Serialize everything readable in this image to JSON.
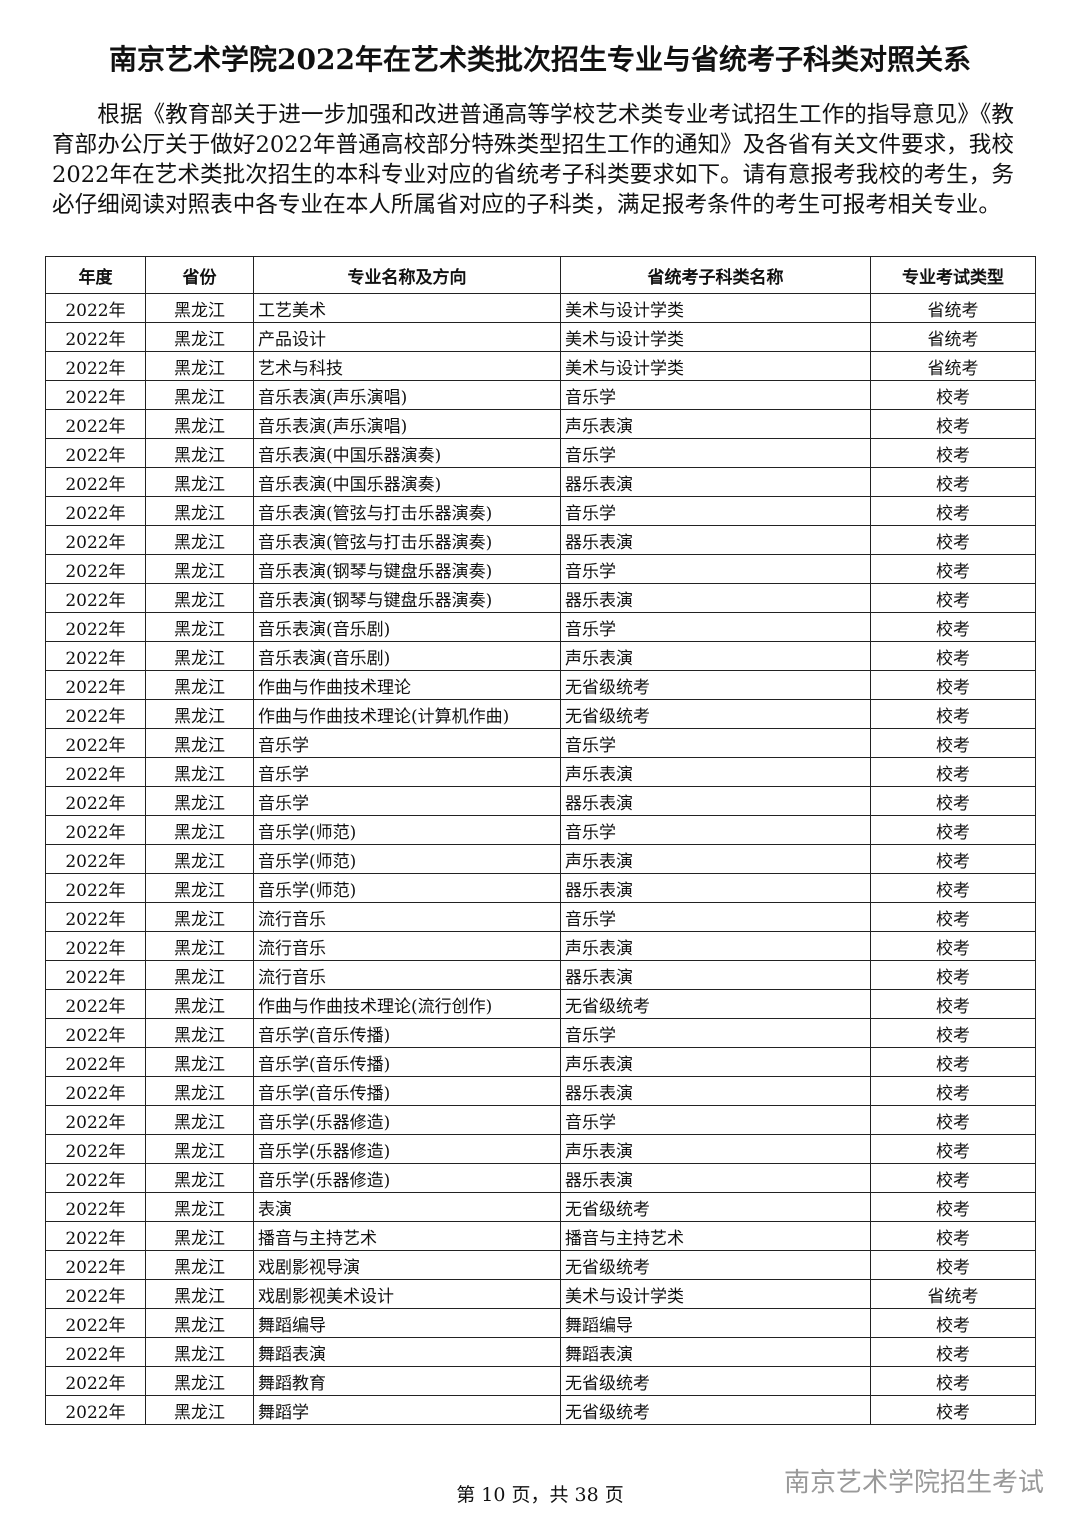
{
  "title": "南京艺术学院2022年在艺术类批次招生专业与省统考子科类对照关系",
  "intro": "根据《教育部关于进一步加强和改进普通高等学校艺术类专业考试招生工作的指导意见》《教育部办公厅关于做好2022年普通高校部分特殊类型招生工作的通知》及各省有关文件要求，我校2022年在艺术类批次招生的本科专业对应的省统考子科类要求如下。请有意报考我校的考生，务必仔细阅读对照表中各专业在本人所属省对应的子科类，满足报考条件的考生可报考相关专业。",
  "table": {
    "header": [
      "年度",
      "省份",
      "专业名称及方向",
      "省统考子科类名称",
      "专业考试类型"
    ],
    "rows": [
      [
        "2022年",
        "黑龙江",
        "工艺美术",
        "美术与设计学类",
        "省统考"
      ],
      [
        "2022年",
        "黑龙江",
        "产品设计",
        "美术与设计学类",
        "省统考"
      ],
      [
        "2022年",
        "黑龙江",
        "艺术与科技",
        "美术与设计学类",
        "省统考"
      ],
      [
        "2022年",
        "黑龙江",
        "音乐表演(声乐演唱)",
        "音乐学",
        "校考"
      ],
      [
        "2022年",
        "黑龙江",
        "音乐表演(声乐演唱)",
        "声乐表演",
        "校考"
      ],
      [
        "2022年",
        "黑龙江",
        "音乐表演(中国乐器演奏)",
        "音乐学",
        "校考"
      ],
      [
        "2022年",
        "黑龙江",
        "音乐表演(中国乐器演奏)",
        "器乐表演",
        "校考"
      ],
      [
        "2022年",
        "黑龙江",
        "音乐表演(管弦与打击乐器演奏)",
        "音乐学",
        "校考"
      ],
      [
        "2022年",
        "黑龙江",
        "音乐表演(管弦与打击乐器演奏)",
        "器乐表演",
        "校考"
      ],
      [
        "2022年",
        "黑龙江",
        "音乐表演(钢琴与键盘乐器演奏)",
        "音乐学",
        "校考"
      ],
      [
        "2022年",
        "黑龙江",
        "音乐表演(钢琴与键盘乐器演奏)",
        "器乐表演",
        "校考"
      ],
      [
        "2022年",
        "黑龙江",
        "音乐表演(音乐剧)",
        "音乐学",
        "校考"
      ],
      [
        "2022年",
        "黑龙江",
        "音乐表演(音乐剧)",
        "声乐表演",
        "校考"
      ],
      [
        "2022年",
        "黑龙江",
        "作曲与作曲技术理论",
        "无省级统考",
        "校考"
      ],
      [
        "2022年",
        "黑龙江",
        "作曲与作曲技术理论(计算机作曲)",
        "无省级统考",
        "校考"
      ],
      [
        "2022年",
        "黑龙江",
        "音乐学",
        "音乐学",
        "校考"
      ],
      [
        "2022年",
        "黑龙江",
        "音乐学",
        "声乐表演",
        "校考"
      ],
      [
        "2022年",
        "黑龙江",
        "音乐学",
        "器乐表演",
        "校考"
      ],
      [
        "2022年",
        "黑龙江",
        "音乐学(师范)",
        "音乐学",
        "校考"
      ],
      [
        "2022年",
        "黑龙江",
        "音乐学(师范)",
        "声乐表演",
        "校考"
      ],
      [
        "2022年",
        "黑龙江",
        "音乐学(师范)",
        "器乐表演",
        "校考"
      ],
      [
        "2022年",
        "黑龙江",
        "流行音乐",
        "音乐学",
        "校考"
      ],
      [
        "2022年",
        "黑龙江",
        "流行音乐",
        "声乐表演",
        "校考"
      ],
      [
        "2022年",
        "黑龙江",
        "流行音乐",
        "器乐表演",
        "校考"
      ],
      [
        "2022年",
        "黑龙江",
        "作曲与作曲技术理论(流行创作)",
        "无省级统考",
        "校考"
      ],
      [
        "2022年",
        "黑龙江",
        "音乐学(音乐传播)",
        "音乐学",
        "校考"
      ],
      [
        "2022年",
        "黑龙江",
        "音乐学(音乐传播)",
        "声乐表演",
        "校考"
      ],
      [
        "2022年",
        "黑龙江",
        "音乐学(音乐传播)",
        "器乐表演",
        "校考"
      ],
      [
        "2022年",
        "黑龙江",
        "音乐学(乐器修造)",
        "音乐学",
        "校考"
      ],
      [
        "2022年",
        "黑龙江",
        "音乐学(乐器修造)",
        "声乐表演",
        "校考"
      ],
      [
        "2022年",
        "黑龙江",
        "音乐学(乐器修造)",
        "器乐表演",
        "校考"
      ],
      [
        "2022年",
        "黑龙江",
        "表演",
        "无省级统考",
        "校考"
      ],
      [
        "2022年",
        "黑龙江",
        "播音与主持艺术",
        "播音与主持艺术",
        "校考"
      ],
      [
        "2022年",
        "黑龙江",
        "戏剧影视导演",
        "无省级统考",
        "校考"
      ],
      [
        "2022年",
        "黑龙江",
        "戏剧影视美术设计",
        "美术与设计学类",
        "省统考"
      ],
      [
        "2022年",
        "黑龙江",
        "舞蹈编导",
        "舞蹈编导",
        "校考"
      ],
      [
        "2022年",
        "黑龙江",
        "舞蹈表演",
        "舞蹈表演",
        "校考"
      ],
      [
        "2022年",
        "黑龙江",
        "舞蹈教育",
        "无省级统考",
        "校考"
      ],
      [
        "2022年",
        "黑龙江",
        "舞蹈学",
        "无省级统考",
        "校考"
      ]
    ]
  },
  "footer": "第 10 页，共 38 页",
  "watermark": "南京艺术学院招生考试"
}
